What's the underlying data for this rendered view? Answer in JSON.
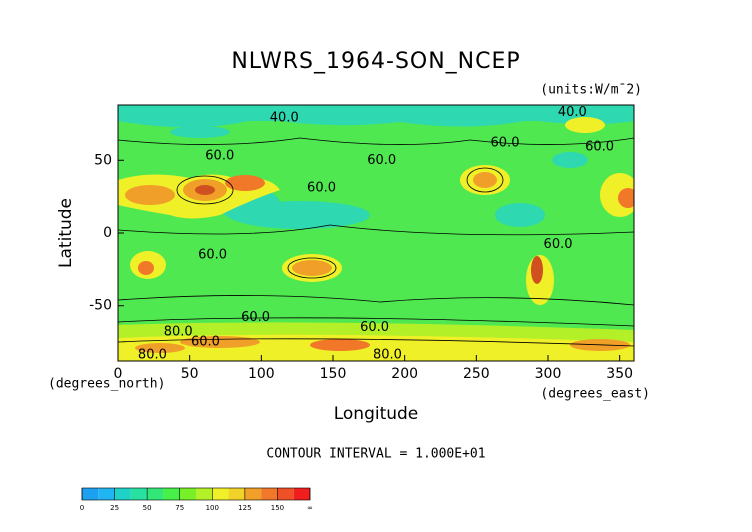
{
  "chart_data": {
    "type": "contour",
    "title": "NLWRS_1964-SON_NCEP",
    "units": "(units:W/m¯2)",
    "x_label": "Longitude",
    "y_label": "Latitude",
    "x_unit": "(degrees_east)",
    "y_unit": "(degrees_north)",
    "footnote": "CONTOUR INTERVAL = 1.000E+01",
    "xlim": [
      0,
      360
    ],
    "ylim": [
      -88,
      88
    ],
    "xticks": [
      0,
      50,
      100,
      150,
      200,
      250,
      300,
      350
    ],
    "yticks": [
      -50,
      0,
      50
    ],
    "annotations": [
      {
        "text": "40.0",
        "x": 116,
        "y": 79
      },
      {
        "text": "60.0",
        "x": 71,
        "y": 53
      },
      {
        "text": "60.0",
        "x": 184,
        "y": 50
      },
      {
        "text": "60.0",
        "x": 142,
        "y": 31
      },
      {
        "text": "60.0",
        "x": 270,
        "y": 62
      },
      {
        "text": "40.0",
        "x": 317,
        "y": 83
      },
      {
        "text": "60.0",
        "x": 336,
        "y": 59
      },
      {
        "text": "60.0",
        "x": 66,
        "y": -15
      },
      {
        "text": "60.0",
        "x": 307,
        "y": -8
      },
      {
        "text": "60.0",
        "x": 96,
        "y": -58
      },
      {
        "text": "60.0",
        "x": 179,
        "y": -65
      },
      {
        "text": "80.0",
        "x": 42,
        "y": -68
      },
      {
        "text": "60.0",
        "x": 61,
        "y": -75
      },
      {
        "text": "80.0",
        "x": 24,
        "y": -84
      },
      {
        "text": "80.0",
        "x": 188,
        "y": -84
      }
    ],
    "colorbar": {
      "ticks": [
        0,
        25,
        50,
        75,
        100,
        125,
        150,
        {
          "value": 175,
          "label": "∞"
        }
      ],
      "colors": [
        "#1ea0f0",
        "#20b4f0",
        "#1ed2c8",
        "#28e0a0",
        "#32e678",
        "#46f046",
        "#78f028",
        "#b4f028",
        "#f0f028",
        "#f0d228",
        "#f0a028",
        "#f07828",
        "#f05028",
        "#f01e1e"
      ]
    }
  }
}
